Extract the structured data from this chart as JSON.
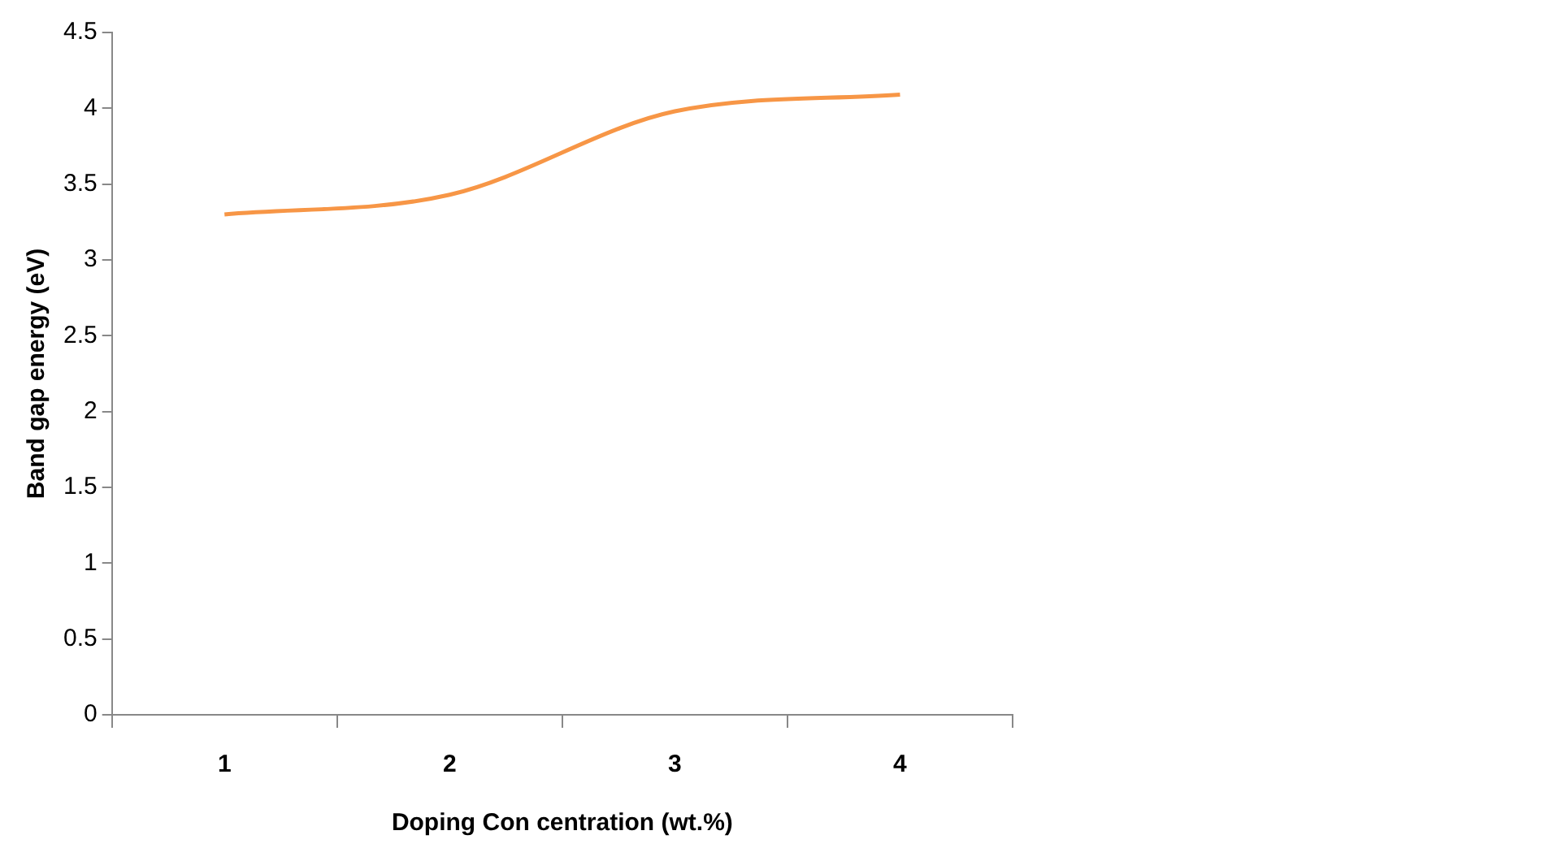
{
  "chart_data": {
    "type": "line",
    "xlabel": "Doping Con centration (wt.%)",
    "ylabel": "Band gap energy (eV)",
    "categories": [
      "1",
      "2",
      "3",
      "4"
    ],
    "series": [
      {
        "color": "#f79646",
        "values": [
          3.3,
          3.43,
          3.98,
          4.09
        ]
      }
    ],
    "ylim": [
      0,
      4.5
    ],
    "yticks": [
      0,
      0.5,
      1,
      1.5,
      2,
      2.5,
      3,
      3.5,
      4,
      4.5
    ],
    "grid": false,
    "legend": false,
    "marker": "none"
  }
}
